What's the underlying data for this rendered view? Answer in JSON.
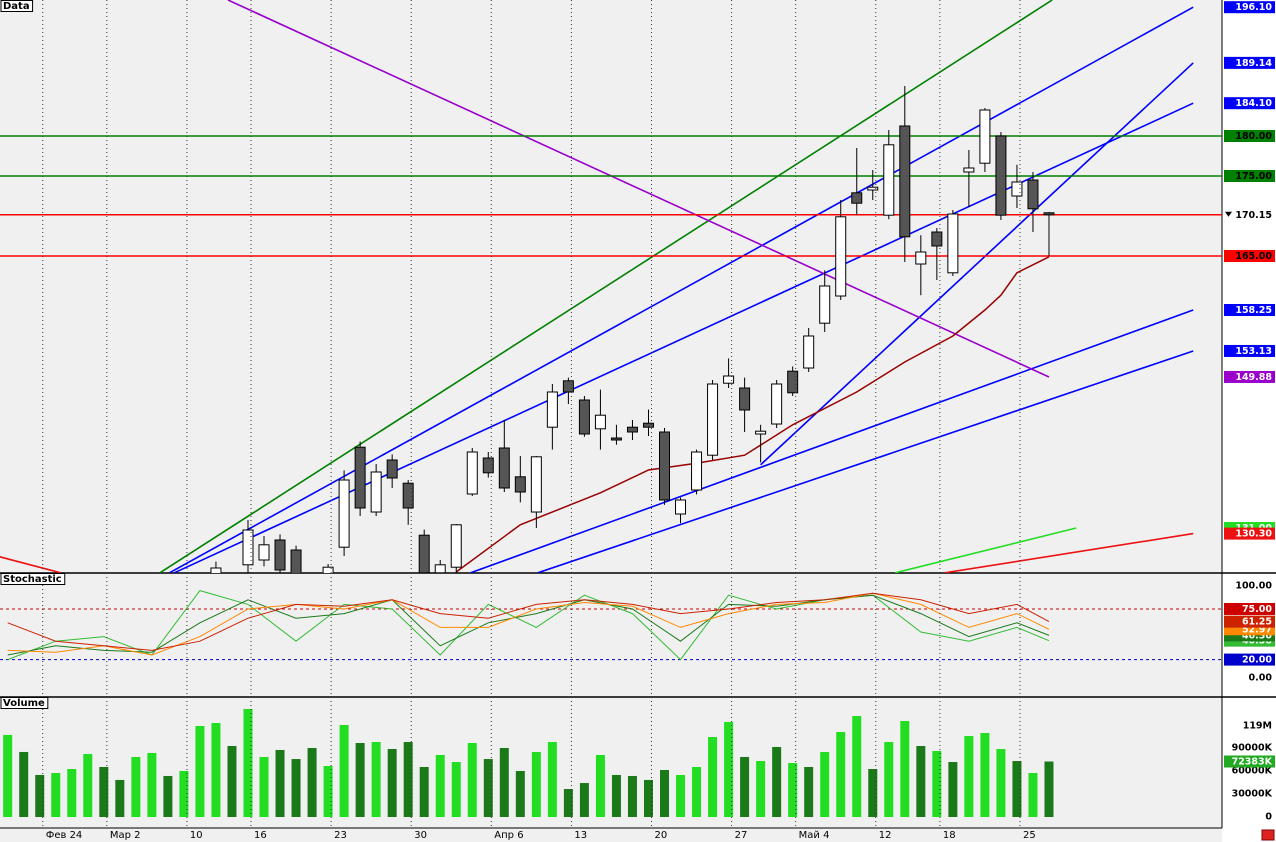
{
  "chart_data": [
    {
      "type": "candlestick",
      "title": "Data",
      "x": [
        0,
        1,
        2,
        3,
        4,
        5,
        6,
        7,
        8,
        9,
        10,
        11,
        12,
        13,
        14,
        15,
        16,
        17,
        18,
        19,
        20,
        21,
        22,
        23,
        24,
        25,
        26,
        27,
        28,
        29,
        30,
        31,
        32,
        33,
        34,
        35,
        36,
        37,
        38,
        39,
        40,
        41,
        42,
        43,
        44,
        45,
        46,
        47,
        48,
        49,
        50,
        51,
        52
      ],
      "open": [
        124.5,
        124,
        126.4,
        127,
        129.5,
        128.25,
        124.6,
        125.2,
        128.6,
        141.1,
        133,
        139.5,
        136.6,
        130.1,
        125.4,
        126.1,
        135.25,
        139.75,
        141,
        137.4,
        133,
        143.6,
        149.4,
        147,
        143.4,
        142.25,
        143.6,
        144.1,
        143,
        132.75,
        135.75,
        140.1,
        149.1,
        148.5,
        142.75,
        144,
        150.6,
        151,
        156.6,
        160,
        172.9,
        173.25,
        170.1,
        181.25,
        164,
        168,
        162.9,
        175.5,
        176.6,
        180,
        172.5,
        174.5,
        170.4
      ],
      "high": [
        126.8,
        125.2,
        132,
        130,
        130.2,
        128.8,
        125.3,
        126.5,
        138.2,
        141.8,
        139,
        140.2,
        137,
        130.8,
        127,
        131.5,
        141,
        140.5,
        144.5,
        140,
        140,
        149,
        149.8,
        147.5,
        148.3,
        143.9,
        144.5,
        145.8,
        143.5,
        134.8,
        140.8,
        149.5,
        152.2,
        149.8,
        143.9,
        149.5,
        151.2,
        156,
        163.2,
        172,
        178.5,
        175.75,
        180.75,
        186.25,
        167.6,
        168.5,
        170.75,
        178.25,
        183.5,
        180.5,
        176.4,
        175.5,
        170.5
      ],
      "low": [
        123.5,
        123,
        125,
        126.2,
        125,
        123.8,
        123.2,
        124.8,
        127.5,
        132.5,
        132.5,
        136,
        131.4,
        124.5,
        124.8,
        125.3,
        135,
        137.3,
        135.5,
        134.2,
        131,
        140.8,
        146.5,
        142.4,
        140.8,
        141.4,
        142,
        142.5,
        133.9,
        131.6,
        135.2,
        139.5,
        148.5,
        143,
        139.2,
        143.5,
        147.5,
        150.5,
        155.5,
        159.5,
        170.1,
        172,
        169.6,
        164.25,
        160.1,
        162,
        162.5,
        171.1,
        175.5,
        169.5,
        171,
        168,
        165
      ],
      "close": [
        126,
        124.8,
        130.75,
        128.9,
        125.75,
        124.8,
        124,
        126.1,
        137,
        133.5,
        138,
        137.25,
        133.5,
        125.4,
        126.4,
        131.4,
        140.5,
        137.9,
        136,
        135.5,
        139.9,
        148,
        148,
        142.75,
        145.1,
        142,
        143,
        143.6,
        134.5,
        134.5,
        140.5,
        149,
        150,
        145.75,
        143.1,
        149,
        147.9,
        155,
        161.25,
        169.9,
        171.6,
        173.6,
        178.9,
        167.4,
        165.5,
        166.25,
        170.25,
        176,
        183.25,
        170.1,
        174.25,
        170.9,
        170.15
      ],
      "xlim": [
        -13.48,
        62.8
      ],
      "ylim": [
        125.375,
        197
      ],
      "ma": {
        "color": "#990000",
        "x": [
          15,
          19,
          24,
          27,
          30,
          33,
          36,
          40,
          43,
          46,
          48,
          49,
          50,
          52
        ],
        "values": [
          125.5,
          131.4,
          135.4,
          138.25,
          139.1,
          140.1,
          143.9,
          148,
          151.75,
          155,
          158.25,
          160.1,
          162.9,
          164.9
        ]
      },
      "levels": [
        {
          "value": 180,
          "label": "180.00",
          "color": "#008000"
        },
        {
          "value": 175,
          "label": "175.00",
          "color": "#008000"
        },
        {
          "value": 170.15,
          "label": "170.15",
          "color": "#ff0000",
          "marker": true
        },
        {
          "value": 165,
          "label": "165.00",
          "color": "#ff0000"
        }
      ],
      "trendlines": [
        {
          "x": [
            -3.5,
            52.2
          ],
          "values": [
            125.4,
            197
          ],
          "color": "#008000"
        },
        {
          "x": [
            -2.9,
            61
          ],
          "values": [
            125.4,
            196.1
          ],
          "color": "#0000ff",
          "label": "196.10"
        },
        {
          "x": [
            -2.6,
            61
          ],
          "values": [
            125.4,
            184.1
          ],
          "color": "#0000ff",
          "label": "184.10"
        },
        {
          "x": [
            34,
            61
          ],
          "values": [
            138.9,
            189.14
          ],
          "color": "#0000ff",
          "label": "189.14"
        },
        {
          "x": [
            15.9,
            61
          ],
          "values": [
            125.4,
            158.25
          ],
          "color": "#0000ff",
          "label": "158.25"
        },
        {
          "x": [
            20.1,
            61
          ],
          "values": [
            125.4,
            153.13
          ],
          "color": "#0000ff",
          "label": "153.13"
        },
        {
          "x": [
            0.75,
            52
          ],
          "values": [
            197,
            149.88
          ],
          "color": "#9900cc",
          "label": "149.88"
        },
        {
          "x": [
            42.4,
            53.7
          ],
          "values": [
            125.4,
            131
          ],
          "color": "#22dd22",
          "label": "131.00"
        },
        {
          "x": [
            45.5,
            61
          ],
          "values": [
            125.4,
            130.3
          ],
          "color": "#ee1111",
          "label": "130.30"
        },
        {
          "x": [
            -13.5,
            -9.7
          ],
          "values": [
            127.4,
            125.4
          ],
          "color": "#ee1111"
        }
      ]
    },
    {
      "type": "line",
      "title": "Stochastic",
      "x": [
        -13,
        -10,
        -7,
        -4,
        -1,
        2,
        5,
        8,
        11,
        14,
        17,
        20,
        23,
        26,
        29,
        32,
        35,
        38,
        41,
        44,
        47,
        50,
        52
      ],
      "xlim": [
        -13.48,
        62.8
      ],
      "ylim": [
        -20.65,
        114.1
      ],
      "yticks": [
        {
          "value": 100,
          "label": "100.00"
        },
        {
          "value": 0,
          "label": "0.00"
        }
      ],
      "levels": [
        {
          "value": 75,
          "label": "75.00",
          "color": "#cc0000"
        },
        {
          "value": 20,
          "label": "20.00",
          "color": "#0000cc"
        }
      ],
      "series": [
        {
          "color": "#33bb33",
          "last_label": "40.58",
          "values": [
            20,
            40,
            45,
            25,
            95,
            80,
            40,
            80,
            75,
            25,
            80,
            55,
            90,
            70,
            20,
            90,
            75,
            85,
            90,
            50,
            40,
            55,
            40.58
          ]
        },
        {
          "color": "#1a7a1a",
          "last_label": "46.30",
          "values": [
            25,
            35,
            30,
            28,
            60,
            85,
            65,
            70,
            85,
            35,
            60,
            70,
            85,
            75,
            40,
            80,
            78,
            85,
            90,
            70,
            45,
            60,
            46.3
          ]
        },
        {
          "color": "#ff8800",
          "last_label": "52.97",
          "values": [
            30,
            28,
            35,
            25,
            45,
            75,
            80,
            75,
            85,
            55,
            55,
            75,
            82,
            78,
            55,
            70,
            80,
            82,
            92,
            80,
            55,
            70,
            52.97
          ]
        },
        {
          "color": "#cc2200",
          "last_label": "61.25",
          "values": [
            60,
            40,
            35,
            30,
            40,
            65,
            80,
            78,
            85,
            70,
            65,
            80,
            85,
            80,
            70,
            75,
            82,
            85,
            92,
            85,
            70,
            80,
            61.25
          ]
        }
      ]
    },
    {
      "type": "bar",
      "title": "Volume",
      "x": [
        -13,
        -12,
        -11,
        -10,
        -9,
        -8,
        -7,
        -6,
        -5,
        -4,
        -3,
        -2,
        -1,
        0,
        1,
        2,
        3,
        4,
        5,
        6,
        7,
        8,
        9,
        10,
        11,
        12,
        13,
        14,
        15,
        16,
        17,
        18,
        19,
        20,
        21,
        22,
        23,
        24,
        25,
        26,
        27,
        28,
        29,
        30,
        31,
        32,
        33,
        34,
        35,
        36,
        37,
        38,
        39,
        40,
        41,
        42,
        43,
        44,
        45,
        46,
        47,
        48,
        49,
        50,
        51,
        52
      ],
      "values": [
        107000,
        84800,
        54800,
        57400,
        62600,
        82200,
        65200,
        48300,
        78300,
        83500,
        53500,
        60000,
        118700,
        122600,
        92600,
        140900,
        78300,
        87400,
        75600,
        90000,
        66500,
        120000,
        96500,
        97800,
        88700,
        97800,
        65200,
        80900,
        71700,
        96500,
        75600,
        90000,
        60000,
        84800,
        97800,
        36500,
        44300,
        80900,
        54800,
        53500,
        48300,
        61300,
        54800,
        65200,
        104300,
        123900,
        78300,
        73000,
        91300,
        70400,
        65200,
        84800,
        110900,
        131700,
        62600,
        97800,
        125200,
        92600,
        86100,
        71700,
        105600,
        109600,
        88700,
        73000,
        57400,
        72383
      ],
      "colors": [
        "#22dd22",
        "#1a7a1a",
        "#1a7a1a",
        "#22dd22",
        "#22dd22",
        "#22dd22",
        "#1a7a1a",
        "#1a7a1a",
        "#22dd22",
        "#22dd22",
        "#1a7a1a",
        "#22dd22",
        "#22dd22",
        "#22dd22",
        "#1a7a1a",
        "#22dd22",
        "#22dd22",
        "#1a7a1a",
        "#1a7a1a",
        "#1a7a1a",
        "#22dd22",
        "#22dd22",
        "#1a7a1a",
        "#22dd22",
        "#1a7a1a",
        "#1a7a1a",
        "#1a7a1a",
        "#22dd22",
        "#22dd22",
        "#22dd22",
        "#1a7a1a",
        "#1a7a1a",
        "#1a7a1a",
        "#22dd22",
        "#22dd22",
        "#1a7a1a",
        "#1a7a1a",
        "#22dd22",
        "#1a7a1a",
        "#1a7a1a",
        "#1a7a1a",
        "#1a7a1a",
        "#22dd22",
        "#22dd22",
        "#22dd22",
        "#22dd22",
        "#1a7a1a",
        "#22dd22",
        "#1a7a1a",
        "#22dd22",
        "#1a7a1a",
        "#22dd22",
        "#22dd22",
        "#22dd22",
        "#1a7a1a",
        "#22dd22",
        "#22dd22",
        "#1a7a1a",
        "#22dd22",
        "#1a7a1a",
        "#22dd22",
        "#22dd22",
        "#22dd22",
        "#1a7a1a",
        "#22dd22",
        "#1a7a1a",
        "#22dd22"
      ],
      "last_value_label": "72383K",
      "xlim": [
        -13.48,
        62.8
      ],
      "ylim": [
        -14350,
        156500
      ],
      "yticks": [
        0,
        {
          "value": 30000,
          "label": "30000K"
        },
        {
          "value": 60000,
          "label": "60000K"
        },
        {
          "value": 90000,
          "label": "90000K"
        },
        {
          "value": 119000,
          "label": "119M"
        }
      ],
      "xticks": [
        {
          "value": -10,
          "label": "Фев 24"
        },
        {
          "value": -6,
          "label": "Мар 2"
        },
        {
          "value": -1,
          "label": "10"
        },
        {
          "value": 3,
          "label": "16"
        },
        {
          "value": 8,
          "label": "23"
        },
        {
          "value": 13,
          "label": "30"
        },
        {
          "value": 18,
          "label": "Апр 6"
        },
        {
          "value": 23,
          "label": "13"
        },
        {
          "value": 28,
          "label": "20"
        },
        {
          "value": 33,
          "label": "27"
        },
        {
          "value": 37,
          "label": "Май 4"
        },
        {
          "value": 42,
          "label": "12"
        },
        {
          "value": 46,
          "label": "18"
        },
        {
          "value": 51,
          "label": "25"
        }
      ]
    }
  ]
}
